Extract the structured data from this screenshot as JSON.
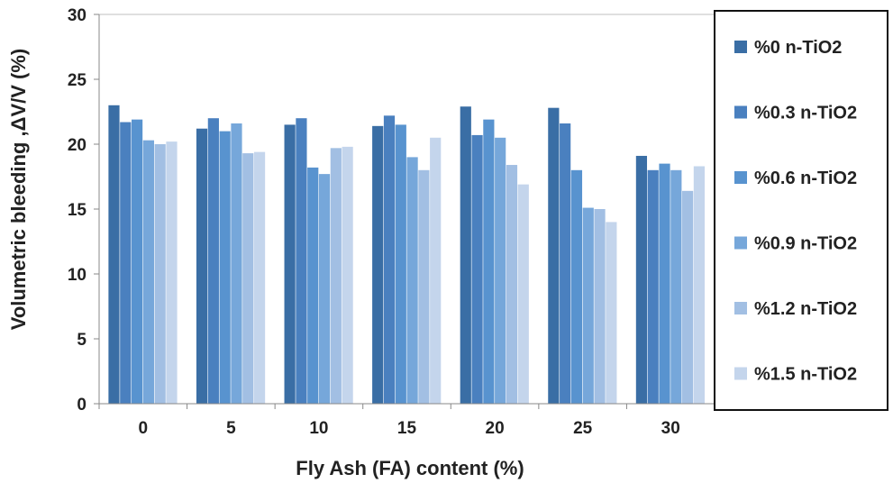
{
  "chart_data": {
    "type": "bar",
    "xlabel": "Fly Ash (FA) content (%)",
    "ylabel": "Volumetric bleeding ,ΔV/V (%)",
    "ylim": [
      0,
      30
    ],
    "yticks": [
      0,
      5,
      10,
      15,
      20,
      25,
      30
    ],
    "categories": [
      "0",
      "5",
      "10",
      "15",
      "20",
      "25",
      "30"
    ],
    "grid": false,
    "legend_position": "right",
    "series": [
      {
        "name": "%0 n-TiO2",
        "color": "#3a6ea5",
        "values": [
          23.0,
          21.2,
          21.5,
          21.4,
          22.9,
          22.8,
          19.1
        ]
      },
      {
        "name": "%0.3 n-TiO2",
        "color": "#4a80bf",
        "values": [
          21.7,
          22.0,
          22.0,
          22.2,
          20.7,
          21.6,
          18.0
        ]
      },
      {
        "name": "%0.6 n-TiO2",
        "color": "#5893cf",
        "values": [
          21.9,
          21.0,
          18.2,
          21.5,
          21.9,
          18.0,
          18.5
        ]
      },
      {
        "name": "%0.9 n-TiO2",
        "color": "#76a7da",
        "values": [
          20.3,
          21.6,
          17.7,
          19.0,
          20.5,
          15.1,
          18.0
        ]
      },
      {
        "name": "%1.2 n-TiO2",
        "color": "#a2bfe3",
        "values": [
          20.0,
          19.3,
          19.7,
          18.0,
          18.4,
          15.0,
          16.4
        ]
      },
      {
        "name": "%1.5 n-TiO2",
        "color": "#c4d5ec",
        "values": [
          20.2,
          19.4,
          19.8,
          20.5,
          16.9,
          14.0,
          18.3
        ]
      }
    ]
  }
}
